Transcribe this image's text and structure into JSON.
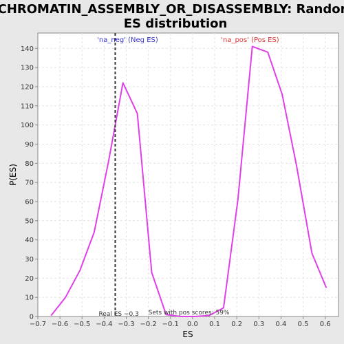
{
  "chart_data": {
    "type": "line",
    "title_line1": "CHROMATIN_ASSEMBLY_OR_DISASSEMBLY: Random",
    "title_line2": "ES distribution",
    "xlabel": "ES",
    "ylabel": "P(ES)",
    "xlim": [
      -0.7,
      0.66
    ],
    "ylim": [
      0,
      148
    ],
    "xticks": [
      -0.7,
      -0.6,
      -0.5,
      -0.4,
      -0.3,
      -0.2,
      -0.1,
      0.0,
      0.1,
      0.2,
      0.3,
      0.4,
      0.5,
      0.6
    ],
    "xtick_labels": [
      "−0.7",
      "−0.6",
      "−0.5",
      "−0.4",
      "−0.3",
      "−0.2",
      "−0.1",
      "0.0",
      "0.1",
      "0.2",
      "0.3",
      "0.4",
      "0.5",
      "0.6"
    ],
    "yticks": [
      0,
      10,
      20,
      30,
      40,
      50,
      60,
      70,
      80,
      90,
      100,
      110,
      120,
      130,
      140
    ],
    "grid": true,
    "line_color": "#e040e8",
    "series": [
      {
        "x": [
          -0.64,
          -0.575,
          -0.51,
          -0.445,
          -0.38,
          -0.315,
          -0.25,
          -0.185,
          -0.12,
          -0.055,
          0.01,
          0.075,
          0.14,
          0.205,
          0.27,
          0.34,
          0.405,
          0.47,
          0.54,
          0.605
        ],
        "y": [
          0.5,
          10,
          24,
          44,
          81,
          122,
          106,
          23,
          1,
          0,
          0,
          0.5,
          4.5,
          61,
          141,
          138,
          116,
          79,
          33,
          15
        ]
      }
    ],
    "real_es": {
      "x": -0.35,
      "label": "Real ES −0.3"
    },
    "annotations": {
      "neg_label": "'na_neg' (Neg ES)",
      "pos_label": "'na_pos' (Pos ES)",
      "neg_color": "#3333cc",
      "pos_color": "#dd3333",
      "pos_scores": "Sets with pos scores: 59%"
    }
  }
}
